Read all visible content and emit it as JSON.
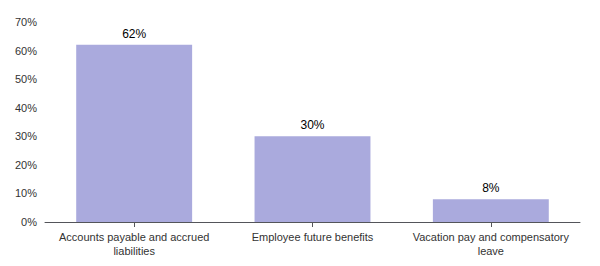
{
  "chart_data": {
    "type": "bar",
    "categories": [
      "Accounts payable and accrued\nliabilities",
      "Employee future benefits",
      "Vacation pay and compensatory\nleave"
    ],
    "values": [
      62,
      30,
      8
    ],
    "value_labels": [
      "62%",
      "30%",
      "8%"
    ],
    "data_labels": true,
    "color": "#aaaadd",
    "ylim": [
      0,
      70
    ],
    "yticks": [
      {
        "value": 0,
        "label": "0%"
      },
      {
        "value": 10,
        "label": "10%"
      },
      {
        "value": 20,
        "label": "20%"
      },
      {
        "value": 30,
        "label": "30%"
      },
      {
        "value": 40,
        "label": "40%"
      },
      {
        "value": 50,
        "label": "50%"
      },
      {
        "value": 60,
        "label": "60%"
      },
      {
        "value": 70,
        "label": "70%"
      }
    ],
    "grid": false
  }
}
